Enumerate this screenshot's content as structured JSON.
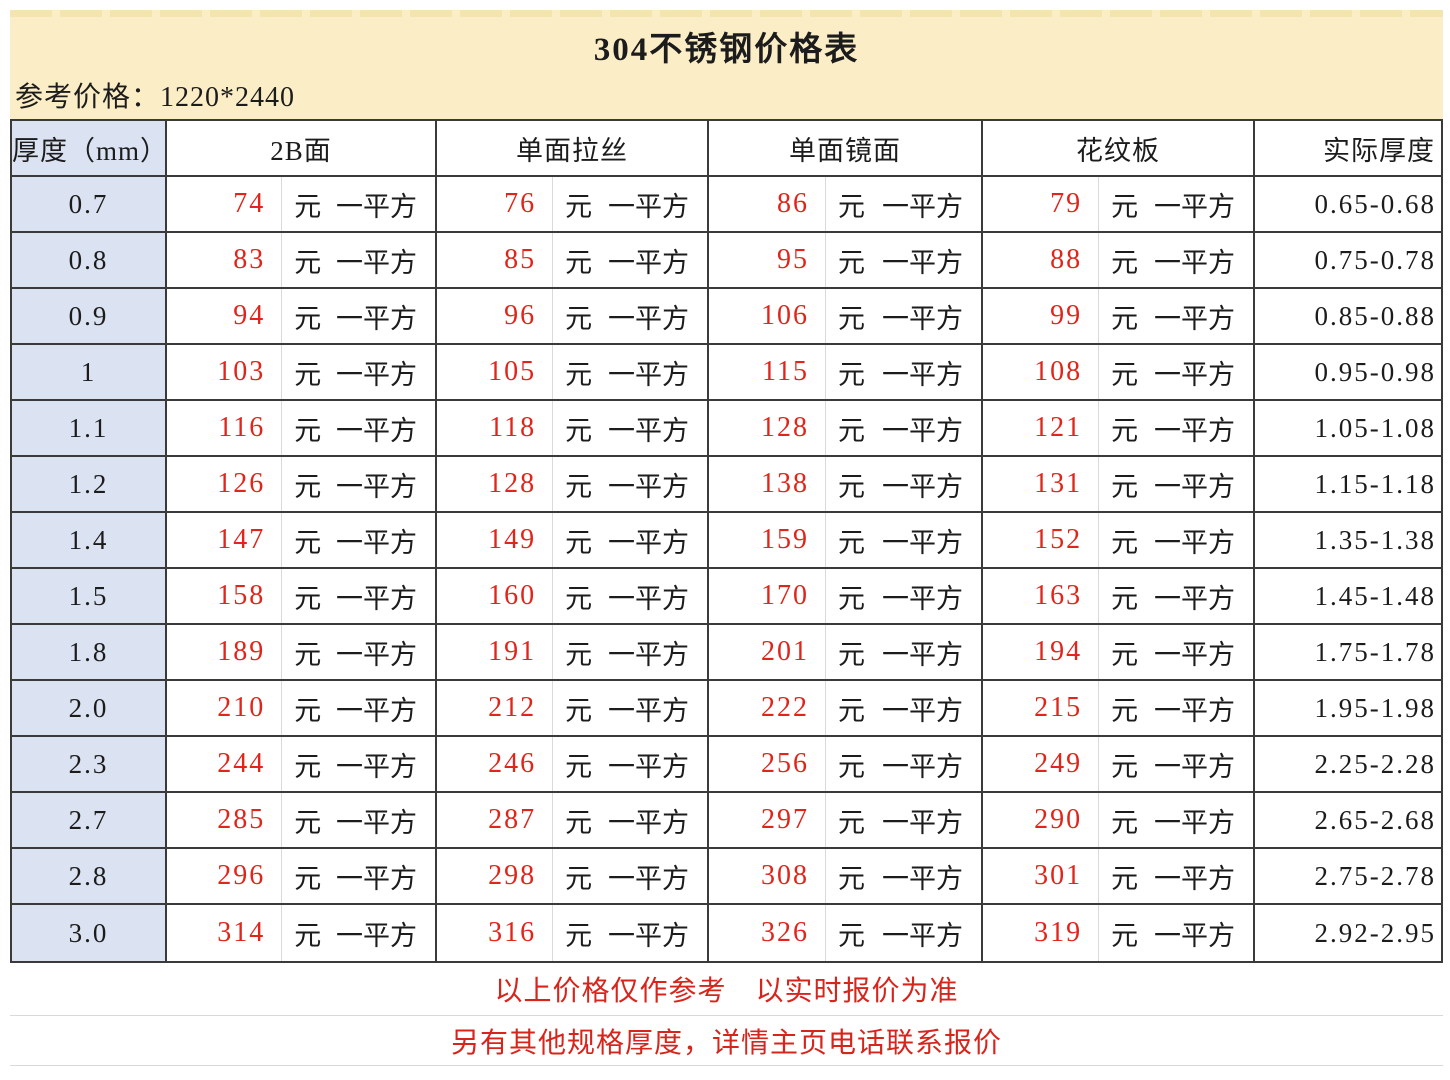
{
  "page": {
    "title": "304不锈钢价格表",
    "subtitle": "参考价格：1220*2440"
  },
  "table": {
    "headers": [
      "厚度（mm）",
      "2B面",
      "单面拉丝",
      "单面镜面",
      "花纹板",
      "实际厚度"
    ],
    "unit_yuan": "元",
    "unit_per_sqm": "一平方",
    "rows": [
      {
        "thickness": "0.7",
        "b2": "74",
        "drawn": "76",
        "mirror": "86",
        "pattern": "79",
        "actual": "0.65-0.68"
      },
      {
        "thickness": "0.8",
        "b2": "83",
        "drawn": "85",
        "mirror": "95",
        "pattern": "88",
        "actual": "0.75-0.78"
      },
      {
        "thickness": "0.9",
        "b2": "94",
        "drawn": "96",
        "mirror": "106",
        "pattern": "99",
        "actual": "0.85-0.88"
      },
      {
        "thickness": "1",
        "b2": "103",
        "drawn": "105",
        "mirror": "115",
        "pattern": "108",
        "actual": "0.95-0.98"
      },
      {
        "thickness": "1.1",
        "b2": "116",
        "drawn": "118",
        "mirror": "128",
        "pattern": "121",
        "actual": "1.05-1.08"
      },
      {
        "thickness": "1.2",
        "b2": "126",
        "drawn": "128",
        "mirror": "138",
        "pattern": "131",
        "actual": "1.15-1.18"
      },
      {
        "thickness": "1.4",
        "b2": "147",
        "drawn": "149",
        "mirror": "159",
        "pattern": "152",
        "actual": "1.35-1.38"
      },
      {
        "thickness": "1.5",
        "b2": "158",
        "drawn": "160",
        "mirror": "170",
        "pattern": "163",
        "actual": "1.45-1.48"
      },
      {
        "thickness": "1.8",
        "b2": "189",
        "drawn": "191",
        "mirror": "201",
        "pattern": "194",
        "actual": "1.75-1.78"
      },
      {
        "thickness": "2.0",
        "b2": "210",
        "drawn": "212",
        "mirror": "222",
        "pattern": "215",
        "actual": "1.95-1.98"
      },
      {
        "thickness": "2.3",
        "b2": "244",
        "drawn": "246",
        "mirror": "256",
        "pattern": "249",
        "actual": "2.25-2.28"
      },
      {
        "thickness": "2.7",
        "b2": "285",
        "drawn": "287",
        "mirror": "297",
        "pattern": "290",
        "actual": "2.65-2.68"
      },
      {
        "thickness": "2.8",
        "b2": "296",
        "drawn": "298",
        "mirror": "308",
        "pattern": "301",
        "actual": "2.75-2.78"
      },
      {
        "thickness": "3.0",
        "b2": "314",
        "drawn": "316",
        "mirror": "326",
        "pattern": "319",
        "actual": "2.92-2.95"
      }
    ]
  },
  "footer": {
    "note1": "以上价格仅作参考　以实时报价为准",
    "note2": "另有其他规格厚度，详情主页电话联系报价"
  },
  "colors": {
    "band_yellow": "#fbeec6",
    "thickness_blue": "#dbe2f1",
    "price_red": "#e1251b",
    "note_red": "#d8251c",
    "grid_dark": "#3a3a3a",
    "grid_light": "#dadada"
  }
}
